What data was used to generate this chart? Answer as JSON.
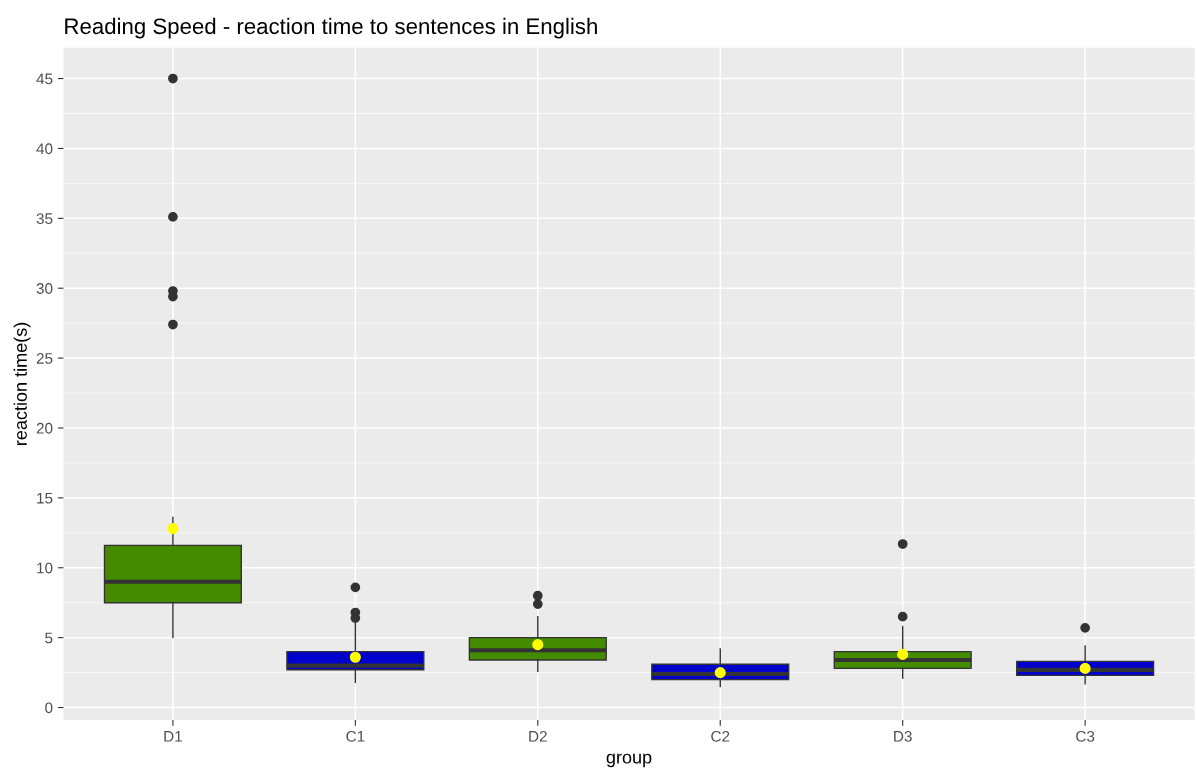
{
  "chart_data": {
    "type": "box",
    "title": "Reading Speed - reaction time to sentences in English",
    "xlabel": "group",
    "ylabel": "reaction time(s)",
    "categories": [
      "D1",
      "C1",
      "D2",
      "C2",
      "D3",
      "C3"
    ],
    "colors": [
      "#458b00",
      "#0000cd",
      "#458b00",
      "#0000cd",
      "#458b00",
      "#0000cd"
    ],
    "boxes": [
      {
        "low": 5.0,
        "q1": 7.5,
        "median": 9.0,
        "q3": 11.6,
        "high": 13.6,
        "mean": 12.8,
        "outliers": [
          27.4,
          29.4,
          29.8,
          35.1,
          45.0
        ]
      },
      {
        "low": 1.8,
        "q1": 2.7,
        "median": 3.0,
        "q3": 4.0,
        "high": 6.0,
        "mean": 3.6,
        "outliers": [
          6.4,
          6.8,
          8.6
        ]
      },
      {
        "low": 2.6,
        "q1": 3.4,
        "median": 4.1,
        "q3": 5.0,
        "high": 6.5,
        "mean": 4.5,
        "outliers": [
          7.4,
          8.0
        ]
      },
      {
        "low": 1.5,
        "q1": 2.0,
        "median": 2.4,
        "q3": 3.1,
        "high": 4.2,
        "mean": 2.5
      },
      {
        "low": 2.1,
        "q1": 2.8,
        "median": 3.4,
        "q3": 4.0,
        "high": 5.8,
        "mean": 3.8,
        "outliers": [
          6.5,
          11.7
        ]
      },
      {
        "low": 1.7,
        "q1": 2.3,
        "median": 2.7,
        "q3": 3.3,
        "high": 4.4,
        "mean": 2.8,
        "outliers": [
          5.7
        ]
      }
    ],
    "ylim": [
      -0.9,
      47.2
    ],
    "yticks": [
      0,
      5,
      10,
      15,
      20,
      25,
      30,
      35,
      40,
      45
    ],
    "grid": true
  }
}
